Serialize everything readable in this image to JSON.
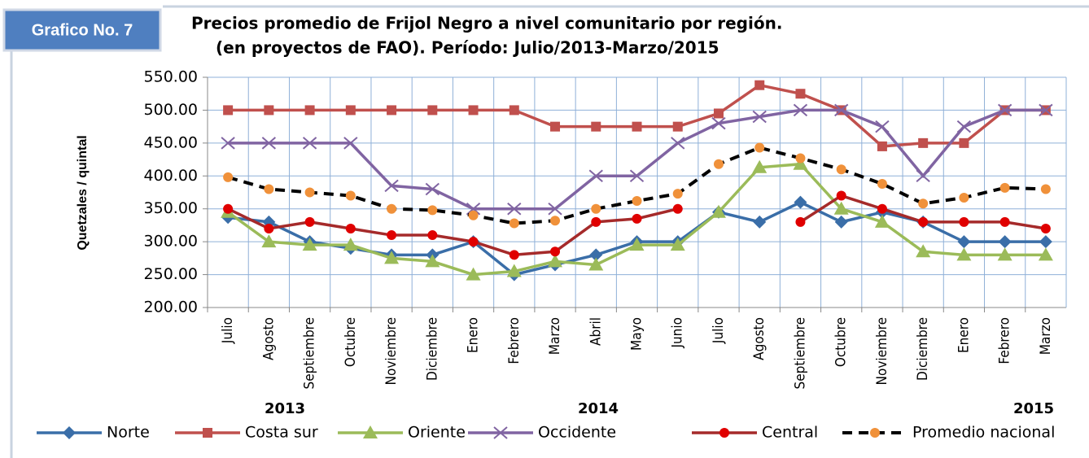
{
  "badge": "Grafico No. 7",
  "chart_data": {
    "type": "line",
    "title": "Precios promedio de Frijol Negro a nivel comunitario por región.",
    "subtitle": "(en proyectos de FAO). Período: Julio/2013-Marzo/2015",
    "y_label": "Quetzales / quintal",
    "categories": [
      "Julio",
      "Agosto",
      "Septiembre",
      "Octubre",
      "Noviembre",
      "Diciembre",
      "Enero",
      "Febrero",
      "Marzo",
      "Abril",
      "Mayo",
      "Junio",
      "Julio",
      "Agosto",
      "Septiembre",
      "Octubre",
      "Noviembre",
      "Diciembre",
      "Enero",
      "Febrero",
      "Marzo"
    ],
    "year_labels": [
      "2013",
      "2014",
      "2015"
    ],
    "ylim": [
      200,
      550
    ],
    "yticks": [
      {
        "value": 200,
        "label": "200.00"
      },
      {
        "value": 250,
        "label": "250.00"
      },
      {
        "value": 300,
        "label": "300.00"
      },
      {
        "value": 350,
        "label": "350.00"
      },
      {
        "value": 400,
        "label": "400.00"
      },
      {
        "value": 450,
        "label": "450.00"
      },
      {
        "value": 500,
        "label": "500.00"
      },
      {
        "value": 550,
        "label": "550.00"
      }
    ],
    "grid": true,
    "legend": "bottom",
    "series": [
      {
        "name": "Norte",
        "color": "#3a6ea8",
        "marker": "diamond",
        "marker_color": "#3a6ea8",
        "values": [
          337,
          330,
          300,
          290,
          280,
          280,
          300,
          250,
          265,
          280,
          300,
          300,
          345,
          330,
          360,
          330,
          345,
          330,
          300,
          300,
          300
        ]
      },
      {
        "name": "Costa sur",
        "color": "#c0504d",
        "marker": "square",
        "marker_color": "#c0504d",
        "values": [
          500,
          500,
          500,
          500,
          500,
          500,
          500,
          500,
          475,
          475,
          475,
          475,
          495,
          538,
          525,
          500,
          445,
          450,
          450,
          500,
          500
        ]
      },
      {
        "name": "Oriente",
        "color": "#9bbb59",
        "marker": "triangle",
        "marker_color": "#9bbb59",
        "values": [
          345,
          300,
          295,
          295,
          275,
          270,
          250,
          255,
          270,
          265,
          295,
          295,
          345,
          413,
          418,
          350,
          330,
          285,
          280,
          280,
          280
        ]
      },
      {
        "name": "Occidente",
        "color": "#8064a2",
        "marker": "x",
        "marker_color": "#8064a2",
        "values": [
          450,
          450,
          450,
          450,
          385,
          380,
          350,
          350,
          350,
          400,
          400,
          450,
          480,
          490,
          500,
          500,
          475,
          400,
          475,
          500,
          500
        ]
      },
      {
        "name": "Central",
        "color": "#a52a2a",
        "marker": "circle",
        "marker_color": "#e00000",
        "values": [
          350,
          320,
          330,
          320,
          310,
          310,
          300,
          280,
          285,
          330,
          335,
          350,
          null,
          null,
          330,
          370,
          350,
          330,
          330,
          330,
          320
        ]
      },
      {
        "name": "Promedio nacional",
        "color": "#000000",
        "marker": "circle",
        "marker_color": "#f0913a",
        "dashed": true,
        "values": [
          398,
          380,
          375,
          370,
          350,
          348,
          340,
          328,
          332,
          350,
          362,
          373,
          418,
          443,
          427,
          410,
          388,
          358,
          367,
          382,
          380
        ]
      }
    ]
  }
}
